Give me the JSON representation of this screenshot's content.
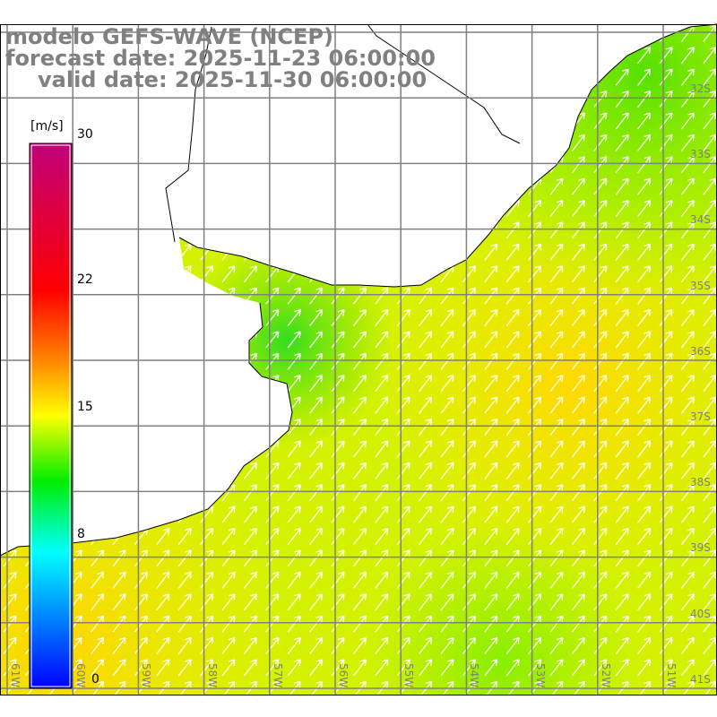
{
  "title": {
    "line1": "modelo GEFS-WAVE (NCEP)",
    "line2": "forecast date: 2025-11-23 06:00:00",
    "line3": "valid date: 2025-11-30 06:00:00"
  },
  "colorbar": {
    "unit": "[m/s]",
    "ticks": [
      "30",
      "22",
      "15",
      "8",
      "0"
    ],
    "colors": [
      "#c0007a",
      "#ff0000",
      "#ff9900",
      "#ffff00",
      "#00ee00",
      "#00ffff",
      "#0000ff"
    ]
  },
  "axes": {
    "lon_labels": [
      "61W",
      "60W",
      "59W",
      "58W",
      "57W",
      "56W",
      "55W",
      "54W",
      "53W",
      "52W",
      "51W"
    ],
    "lat_labels": [
      "32S",
      "33S",
      "34S",
      "35S",
      "36S",
      "37S",
      "38S",
      "39S",
      "40S",
      "41S"
    ]
  },
  "colors": {
    "grid": "#808080",
    "land": "#ffffff",
    "coast": "#000000",
    "arrow": "#ffffff"
  }
}
